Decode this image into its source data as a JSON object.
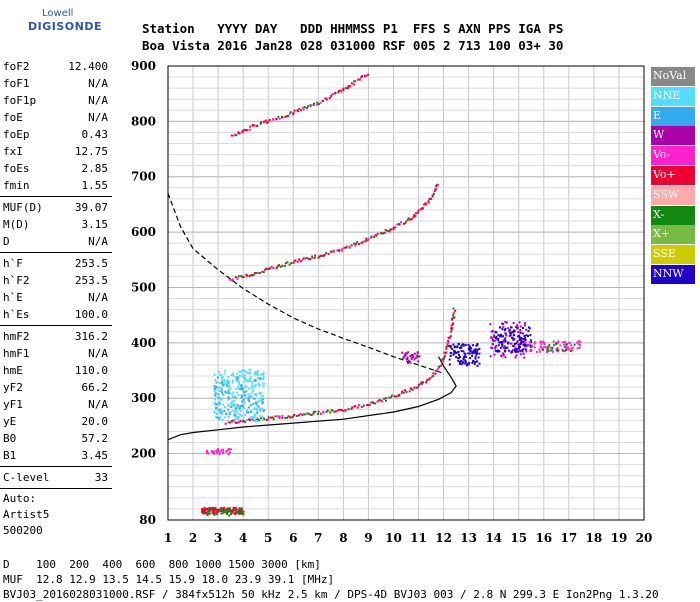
{
  "logo": {
    "line1": "Lowell",
    "line2": "DIGISONDE"
  },
  "header": {
    "labels": "Station   YYYY DAY   DDD HHMMSS P1  FFS S AXN PPS IGA PS",
    "values": "Boa Vista 2016 Jan28 028 031000 RSF 005 2 713 100 03+ 30"
  },
  "params": {
    "group1": [
      {
        "label": "foF2",
        "value": "12.400"
      },
      {
        "label": "foF1",
        "value": "N/A"
      },
      {
        "label": "foF1p",
        "value": "N/A"
      },
      {
        "label": "foE",
        "value": "N/A"
      },
      {
        "label": "foEp",
        "value": "0.43"
      },
      {
        "label": "fxI",
        "value": "12.75"
      },
      {
        "label": "foEs",
        "value": "2.85"
      },
      {
        "label": "fmin",
        "value": "1.55"
      }
    ],
    "group2": [
      {
        "label": "MUF(D)",
        "value": "39.07"
      },
      {
        "label": "M(D)",
        "value": "3.15"
      },
      {
        "label": "D",
        "value": "N/A"
      }
    ],
    "group3": [
      {
        "label": "h`F",
        "value": "253.5"
      },
      {
        "label": "h`F2",
        "value": "253.5"
      },
      {
        "label": "h`E",
        "value": "N/A"
      },
      {
        "label": "h`Es",
        "value": "100.0"
      }
    ],
    "group4": [
      {
        "label": "hmF2",
        "value": "316.2"
      },
      {
        "label": "hmF1",
        "value": "N/A"
      },
      {
        "label": "hmE",
        "value": "110.0"
      },
      {
        "label": "yF2",
        "value": "66.2"
      },
      {
        "label": "yF1",
        "value": "N/A"
      },
      {
        "label": "yE",
        "value": "20.0"
      },
      {
        "label": "B0",
        "value": "57.2"
      },
      {
        "label": "B1",
        "value": "3.45"
      }
    ],
    "group5": [
      {
        "label": "C-level",
        "value": "33"
      }
    ],
    "auto": [
      "Auto:",
      "Artist5",
      "500200"
    ]
  },
  "legend": [
    {
      "label": "NoVal",
      "color": "#888888"
    },
    {
      "label": "NNE",
      "color": "#55ddff"
    },
    {
      "label": "E",
      "color": "#33aaee"
    },
    {
      "label": "W",
      "color": "#aa00aa"
    },
    {
      "label": "Vo-",
      "color": "#ff22cc"
    },
    {
      "label": "Vo+",
      "color": "#ee0033"
    },
    {
      "label": "SSW",
      "color": "#ffaaaa"
    },
    {
      "label": "X-",
      "color": "#118811"
    },
    {
      "label": "X+",
      "color": "#77bb44"
    },
    {
      "label": "SSE",
      "color": "#cccc00"
    },
    {
      "label": "NNW",
      "color": "#2200cc"
    }
  ],
  "footer": {
    "line1": "D    100  200  400  600  800 1000 1500 3000 [km]",
    "line2": "MUF  12.8 12.9 13.5 14.5 15.9 18.0 23.9 39.1 [MHz]",
    "line3": "BVJ03_2016028031000.RSF / 384fx512h 50 kHz 2.5 km / DPS-4D BVJ03 003 / 2.8 N 299.3 E Ion2Png 1.3.20"
  },
  "chart_data": {
    "type": "scatter",
    "xlim": [
      1,
      20
    ],
    "ylim": [
      80,
      900
    ],
    "x_ticks": [
      1,
      2,
      3,
      4,
      5,
      6,
      7,
      8,
      9,
      10,
      11,
      12,
      13,
      14,
      15,
      16,
      17,
      18,
      19,
      20
    ],
    "y_ticks": [
      80,
      200,
      300,
      400,
      500,
      600,
      700,
      800,
      900
    ],
    "grid": true,
    "legend_position": "right",
    "series": [
      {
        "kind": "trace",
        "color": "#ee0033",
        "points": [
          [
            3.3,
            258
          ],
          [
            4,
            261
          ],
          [
            5,
            265
          ],
          [
            6,
            270
          ],
          [
            7,
            276
          ],
          [
            8,
            282
          ],
          [
            9,
            291
          ],
          [
            10,
            305
          ],
          [
            10.8,
            320
          ],
          [
            11.5,
            340
          ],
          [
            11.9,
            365
          ],
          [
            12.1,
            395
          ],
          [
            12.3,
            430
          ],
          [
            12.4,
            465
          ]
        ]
      },
      {
        "kind": "trace",
        "color": "#ee0033",
        "points": [
          [
            3.4,
            515
          ],
          [
            4,
            522
          ],
          [
            5,
            535
          ],
          [
            6,
            548
          ],
          [
            7,
            558
          ],
          [
            8,
            572
          ],
          [
            9,
            590
          ],
          [
            10,
            610
          ],
          [
            10.8,
            630
          ],
          [
            11.4,
            660
          ],
          [
            11.8,
            690
          ]
        ]
      },
      {
        "kind": "trace",
        "color": "#ee0033",
        "points": [
          [
            3.5,
            775
          ],
          [
            4.5,
            795
          ],
          [
            5.5,
            810
          ],
          [
            7,
            835
          ],
          [
            8,
            860
          ],
          [
            9,
            890
          ]
        ]
      },
      {
        "kind": "line",
        "color": "#000000",
        "points": [
          [
            1,
            225
          ],
          [
            1.5,
            234
          ],
          [
            2,
            238
          ],
          [
            3,
            243
          ],
          [
            4,
            248
          ],
          [
            6,
            255
          ],
          [
            8,
            262
          ],
          [
            10,
            275
          ],
          [
            11,
            285
          ],
          [
            11.8,
            298
          ],
          [
            12.3,
            310
          ],
          [
            12.5,
            322
          ],
          [
            12.3,
            338
          ],
          [
            12,
            358
          ],
          [
            11.8,
            375
          ]
        ]
      },
      {
        "kind": "dashed",
        "color": "#000000",
        "points": [
          [
            1,
            670
          ],
          [
            1.5,
            610
          ],
          [
            2,
            570
          ],
          [
            3,
            532
          ],
          [
            4,
            498
          ],
          [
            5,
            470
          ],
          [
            6,
            445
          ],
          [
            7,
            425
          ],
          [
            8,
            408
          ],
          [
            9,
            392
          ],
          [
            10,
            375
          ],
          [
            11,
            360
          ],
          [
            12,
            345
          ]
        ]
      },
      {
        "kind": "cluster",
        "color": "#55ddff",
        "region": [
          2.8,
          4.8,
          260,
          355
        ],
        "count": 260
      },
      {
        "kind": "cluster",
        "color": "#33aaee",
        "region": [
          2.8,
          4.8,
          265,
          340
        ],
        "count": 80
      },
      {
        "kind": "cluster",
        "color": "#2200cc",
        "region": [
          12.2,
          13.4,
          360,
          400
        ],
        "count": 110
      },
      {
        "kind": "cluster",
        "color": "#aa00aa",
        "region": [
          13.8,
          15.3,
          375,
          440
        ],
        "count": 90
      },
      {
        "kind": "cluster",
        "color": "#2200cc",
        "region": [
          14.0,
          15.5,
          385,
          430
        ],
        "count": 110
      },
      {
        "kind": "cluster",
        "color": "#ff22cc",
        "region": [
          15.2,
          17.5,
          385,
          405
        ],
        "count": 70
      },
      {
        "kind": "cluster",
        "color": "#118811",
        "region": [
          15.8,
          17.2,
          387,
          402
        ],
        "count": 20
      },
      {
        "kind": "cluster",
        "color": "#ee0033",
        "region": [
          2.3,
          4.0,
          93,
          104
        ],
        "count": 120
      },
      {
        "kind": "cluster",
        "color": "#118811",
        "region": [
          2.5,
          4.0,
          90,
          104
        ],
        "count": 40
      },
      {
        "kind": "cluster",
        "color": "#ff22cc",
        "region": [
          2.5,
          3.5,
          200,
          210
        ],
        "count": 30
      },
      {
        "kind": "cluster",
        "color": "#aa00aa",
        "region": [
          10.3,
          11.0,
          365,
          385
        ],
        "count": 30
      }
    ]
  }
}
